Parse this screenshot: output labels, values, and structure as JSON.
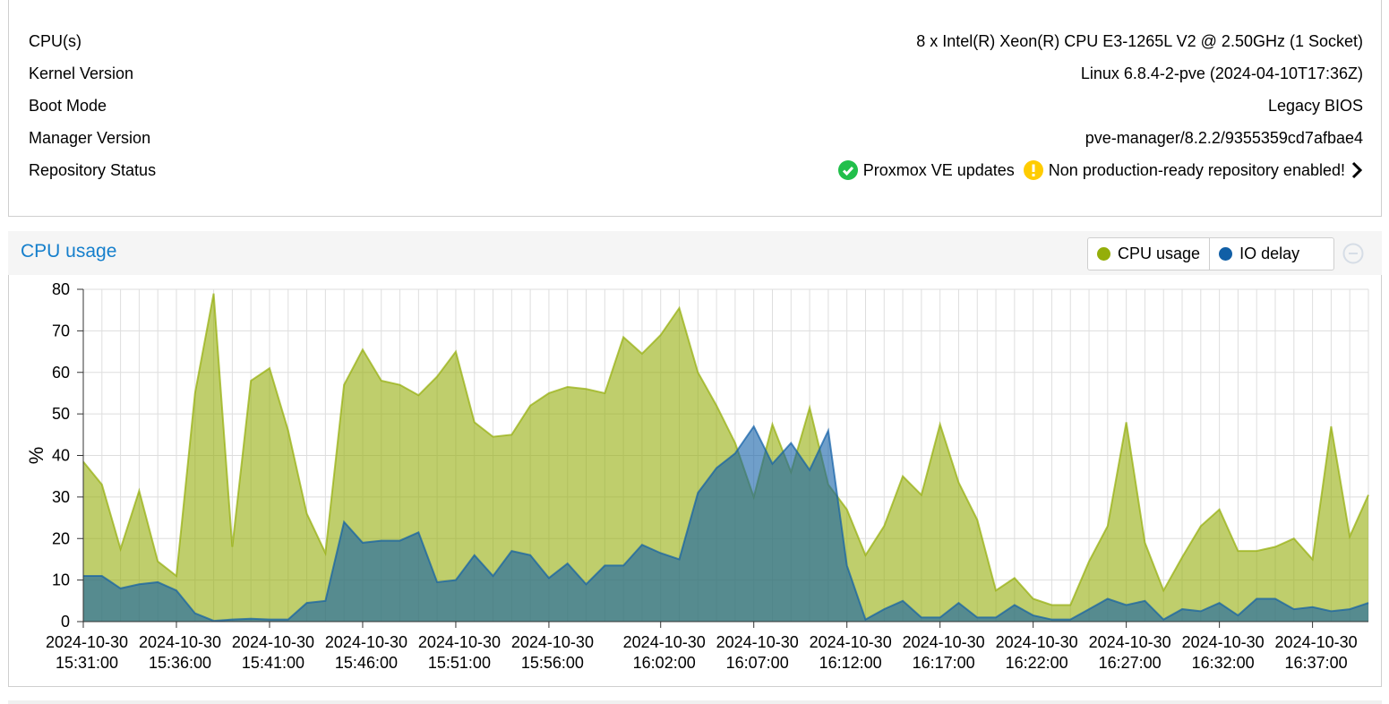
{
  "info": {
    "rows": [
      {
        "label": "CPU(s)",
        "value": "8 x Intel(R) Xeon(R) CPU E3-1265L V2 @ 2.50GHz (1 Socket)"
      },
      {
        "label": "Kernel Version",
        "value": "Linux 6.8.4-2-pve (2024-04-10T17:36Z)"
      },
      {
        "label": "Boot Mode",
        "value": "Legacy BIOS"
      },
      {
        "label": "Manager Version",
        "value": "pve-manager/8.2.2/9355359cd7afbae4"
      }
    ],
    "repository": {
      "label": "Repository Status",
      "ok": "Proxmox VE updates",
      "warning": "Non production-ready repository enabled!"
    }
  },
  "panel": {
    "title": "CPU usage"
  },
  "chart_data": {
    "type": "area",
    "categories": [
      "2024-10-30 15:31:00",
      null,
      null,
      null,
      null,
      "2024-10-30 15:36:00",
      null,
      null,
      null,
      null,
      "2024-10-30 15:41:00",
      null,
      null,
      null,
      null,
      "2024-10-30 15:46:00",
      null,
      null,
      null,
      null,
      "2024-10-30 15:51:00",
      null,
      null,
      null,
      null,
      "2024-10-30 15:56:00",
      null,
      null,
      null,
      null,
      null,
      "2024-10-30 16:02:00",
      null,
      null,
      null,
      null,
      "2024-10-30 16:07:00",
      null,
      null,
      null,
      null,
      "2024-10-30 16:12:00",
      null,
      null,
      null,
      null,
      "2024-10-30 16:17:00",
      null,
      null,
      null,
      null,
      "2024-10-30 16:22:00",
      null,
      null,
      null,
      null,
      "2024-10-30 16:27:00",
      null,
      null,
      null,
      null,
      "2024-10-30 16:32:00",
      null,
      null,
      null,
      null,
      "2024-10-30 16:37:00",
      null,
      null,
      null
    ],
    "series": [
      {
        "name": "CPU usage",
        "color": "#94ae0a",
        "values": [
          38.5,
          33,
          17.5,
          31.5,
          14.5,
          11,
          55,
          79,
          18,
          58,
          61,
          46,
          26,
          16.5,
          57,
          65.5,
          58,
          57,
          54.5,
          59,
          65,
          48,
          44.5,
          45,
          52,
          55,
          56.5,
          56,
          55,
          68.5,
          64.5,
          69,
          75.5,
          60,
          52,
          43,
          30,
          47.5,
          36,
          51.5,
          33,
          27,
          16,
          23,
          35,
          30.5,
          47.5,
          33.5,
          24.5,
          7.5,
          10.5,
          5.5,
          4,
          4,
          14.5,
          23,
          48,
          19,
          7.5,
          15.5,
          23,
          27,
          17,
          17,
          18,
          20,
          15,
          47,
          20.5,
          30.5
        ]
      },
      {
        "name": "IO delay",
        "color": "#115fa6",
        "values": [
          11,
          11,
          8,
          9,
          9.5,
          7.5,
          2,
          0.2,
          0.5,
          0.7,
          0.5,
          0.5,
          4.5,
          5,
          24,
          19,
          19.5,
          19.5,
          21.5,
          9.5,
          10,
          16,
          11,
          17,
          16,
          10.5,
          14,
          9,
          13.5,
          13.5,
          18.5,
          16.5,
          15,
          31,
          37,
          40.5,
          47,
          38,
          43,
          36.5,
          46,
          13.5,
          0.5,
          3,
          5,
          1,
          1,
          4.5,
          1,
          1,
          4,
          1.5,
          0.5,
          0.5,
          3,
          5.5,
          4,
          5,
          0.5,
          3,
          2.5,
          4.5,
          1.5,
          5.5,
          5.5,
          3,
          3.5,
          2.5,
          3,
          4.5
        ]
      }
    ],
    "ylabel": "%",
    "ylim": [
      0,
      80
    ],
    "yticks": [
      0,
      10,
      20,
      30,
      40,
      50,
      60,
      70,
      80
    ],
    "grid": true
  }
}
